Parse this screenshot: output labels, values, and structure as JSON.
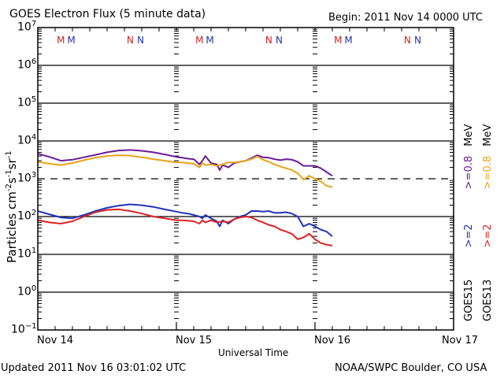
{
  "chart_data": {
    "type": "line",
    "title": "GOES Electron Flux (5 minute data)",
    "begin_label": "Begin: 2011 Nov 14 0000 UTC",
    "xlabel": "Universal Time",
    "ylabel_main": "Particles cm",
    "ylabel_parts": [
      "-2",
      "s",
      "-1",
      "sr",
      "-1"
    ],
    "yscale": "log",
    "ylim_exp": [
      -1,
      7
    ],
    "ytick_exps": [
      7,
      6,
      5,
      4,
      3,
      2,
      1,
      0,
      -1
    ],
    "x_days": [
      "Nov 14",
      "Nov 15",
      "Nov 16",
      "Nov 17"
    ],
    "xlim_hours": [
      0,
      72
    ],
    "threshold_exp": 3,
    "footer_left": "Updated 2011 Nov 16 03:01:02 UTC",
    "footer_right": "NOAA/SWPC Boulder, CO USA",
    "markers": [
      {
        "label": "M",
        "hour": 4.0,
        "color": "#cc2222"
      },
      {
        "label": "M",
        "hour": 5.8,
        "color": "#2233aa"
      },
      {
        "label": "N",
        "hour": 16.0,
        "color": "#cc2222"
      },
      {
        "label": "N",
        "hour": 17.8,
        "color": "#2233aa"
      },
      {
        "label": "M",
        "hour": 28.0,
        "color": "#cc2222"
      },
      {
        "label": "M",
        "hour": 29.8,
        "color": "#2233aa"
      },
      {
        "label": "N",
        "hour": 40.0,
        "color": "#cc2222"
      },
      {
        "label": "N",
        "hour": 41.8,
        "color": "#2233aa"
      },
      {
        "label": "M",
        "hour": 52.0,
        "color": "#cc2222"
      },
      {
        "label": "M",
        "hour": 53.8,
        "color": "#2233aa"
      },
      {
        "label": "N",
        "hour": 64.0,
        "color": "#cc2222"
      },
      {
        "label": "N",
        "hour": 65.8,
        "color": "#2233aa"
      }
    ],
    "legend": [
      {
        "sat": "GOES15",
        "energy": ">=2",
        "unit": "",
        "color": "#2233bb"
      },
      {
        "sat": "",
        "energy": ">=0.8",
        "unit": "MeV",
        "color": "#6a1b9a"
      },
      {
        "sat": "GOES13",
        "energy": ">=2",
        "unit": "",
        "color": "#dd2222"
      },
      {
        "sat": "",
        "energy": ">=0.8",
        "unit": "MeV",
        "color": "#e8a317"
      }
    ],
    "series": [
      {
        "name": "GOES15 >=0.8 MeV",
        "color": "#6a1b9a",
        "x": [
          0,
          2,
          4,
          6,
          8,
          10,
          12,
          14,
          16,
          18,
          20,
          22,
          24,
          25,
          26,
          27,
          28,
          28.5,
          29,
          30,
          31,
          31.5,
          32,
          33,
          34,
          35,
          36,
          37,
          38,
          39,
          40,
          41,
          42,
          43,
          44,
          45,
          46,
          47,
          48,
          49,
          50,
          51
        ],
        "y": [
          4600,
          3800,
          3000,
          3200,
          3700,
          4300,
          5000,
          5600,
          5800,
          5500,
          5000,
          4400,
          3800,
          3600,
          3400,
          3300,
          2400,
          3000,
          4000,
          2600,
          2400,
          1700,
          2300,
          2000,
          2600,
          2800,
          3000,
          3500,
          4200,
          3700,
          3600,
          3300,
          3100,
          3300,
          3200,
          2800,
          2200,
          2200,
          2200,
          1900,
          1500,
          1200
        ]
      },
      {
        "name": "GOES13 >=0.8 MeV",
        "color": "#e8a317",
        "x": [
          0,
          2,
          4,
          6,
          8,
          10,
          12,
          14,
          16,
          18,
          20,
          22,
          24,
          25,
          26,
          27,
          28,
          28.5,
          29,
          30,
          31,
          32,
          33,
          34,
          35,
          36,
          37,
          38,
          39,
          40,
          41,
          42,
          43,
          44,
          45,
          46,
          47,
          48,
          49,
          50,
          51
        ],
        "y": [
          2800,
          2500,
          2300,
          2600,
          3100,
          3600,
          4000,
          4200,
          4100,
          3700,
          3300,
          3000,
          2700,
          2700,
          2600,
          2500,
          2000,
          2600,
          2300,
          2400,
          2200,
          2400,
          2700,
          2700,
          2800,
          3000,
          3300,
          3900,
          3200,
          2800,
          2400,
          2100,
          1900,
          1700,
          1400,
          950,
          1200,
          1000,
          850,
          650,
          600
        ]
      },
      {
        "name": "GOES15 >=2 MeV",
        "color": "#2233bb",
        "x": [
          0,
          2,
          4,
          6,
          8,
          10,
          12,
          14,
          16,
          18,
          20,
          22,
          24,
          25,
          26,
          27,
          28,
          28.5,
          29,
          30,
          31,
          31.5,
          32,
          33,
          34,
          35,
          36,
          37,
          38,
          39,
          40,
          41,
          42,
          43,
          44,
          45,
          46,
          47,
          48,
          49,
          50,
          51
        ],
        "y": [
          140,
          115,
          95,
          90,
          110,
          140,
          170,
          195,
          210,
          200,
          180,
          155,
          135,
          125,
          120,
          110,
          100,
          90,
          110,
          90,
          75,
          55,
          80,
          65,
          85,
          100,
          110,
          140,
          140,
          135,
          140,
          125,
          125,
          130,
          120,
          100,
          55,
          65,
          55,
          45,
          40,
          30
        ]
      },
      {
        "name": "GOES13 >=2 MeV",
        "color": "#dd2222",
        "x": [
          0,
          2,
          4,
          6,
          8,
          10,
          12,
          14,
          16,
          18,
          20,
          22,
          24,
          25,
          26,
          27,
          28,
          28.5,
          29,
          30,
          31,
          32,
          33,
          34,
          35,
          36,
          37,
          38,
          39,
          40,
          41,
          42,
          43,
          44,
          45,
          46,
          47,
          48,
          49,
          50,
          51
        ],
        "y": [
          80,
          70,
          65,
          75,
          100,
          130,
          150,
          155,
          140,
          120,
          100,
          90,
          80,
          80,
          78,
          75,
          65,
          80,
          70,
          80,
          70,
          75,
          70,
          85,
          95,
          100,
          95,
          80,
          70,
          60,
          55,
          45,
          40,
          35,
          25,
          28,
          35,
          25,
          20,
          18,
          17
        ]
      }
    ]
  }
}
